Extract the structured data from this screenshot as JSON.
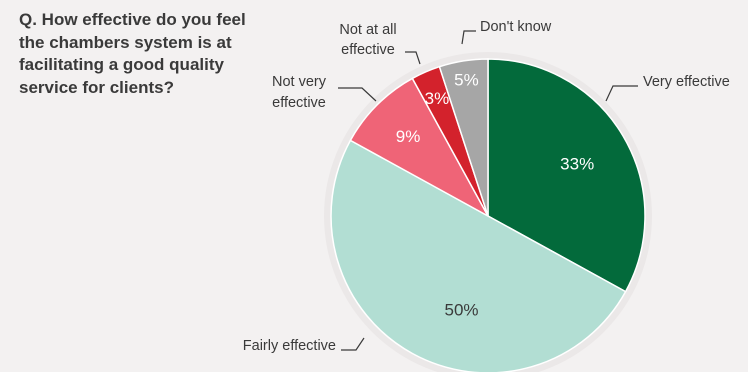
{
  "question": "Q. How effective do you feel the chambers system is at facilitating a good quality service for clients?",
  "chart_data": {
    "type": "pie",
    "slices": [
      {
        "label": "Very effective",
        "value": 33,
        "value_label": "33%",
        "color": "#036a3b",
        "text_color": "#ffffff"
      },
      {
        "label": "Fairly effective",
        "value": 50,
        "value_label": "50%",
        "color": "#b2ded3",
        "text_color": "#3a3a3a"
      },
      {
        "label": "Not very effective",
        "value": 9,
        "value_label": "9%",
        "color": "#ef6477",
        "text_color": "#ffffff"
      },
      {
        "label": "Not at all effective",
        "value": 3,
        "value_label": "3%",
        "color": "#d3222c",
        "text_color": "#ffffff"
      },
      {
        "label": "Don't know",
        "value": 5,
        "value_label": "5%",
        "color": "#a6a6a6",
        "text_color": "#ffffff"
      }
    ]
  }
}
